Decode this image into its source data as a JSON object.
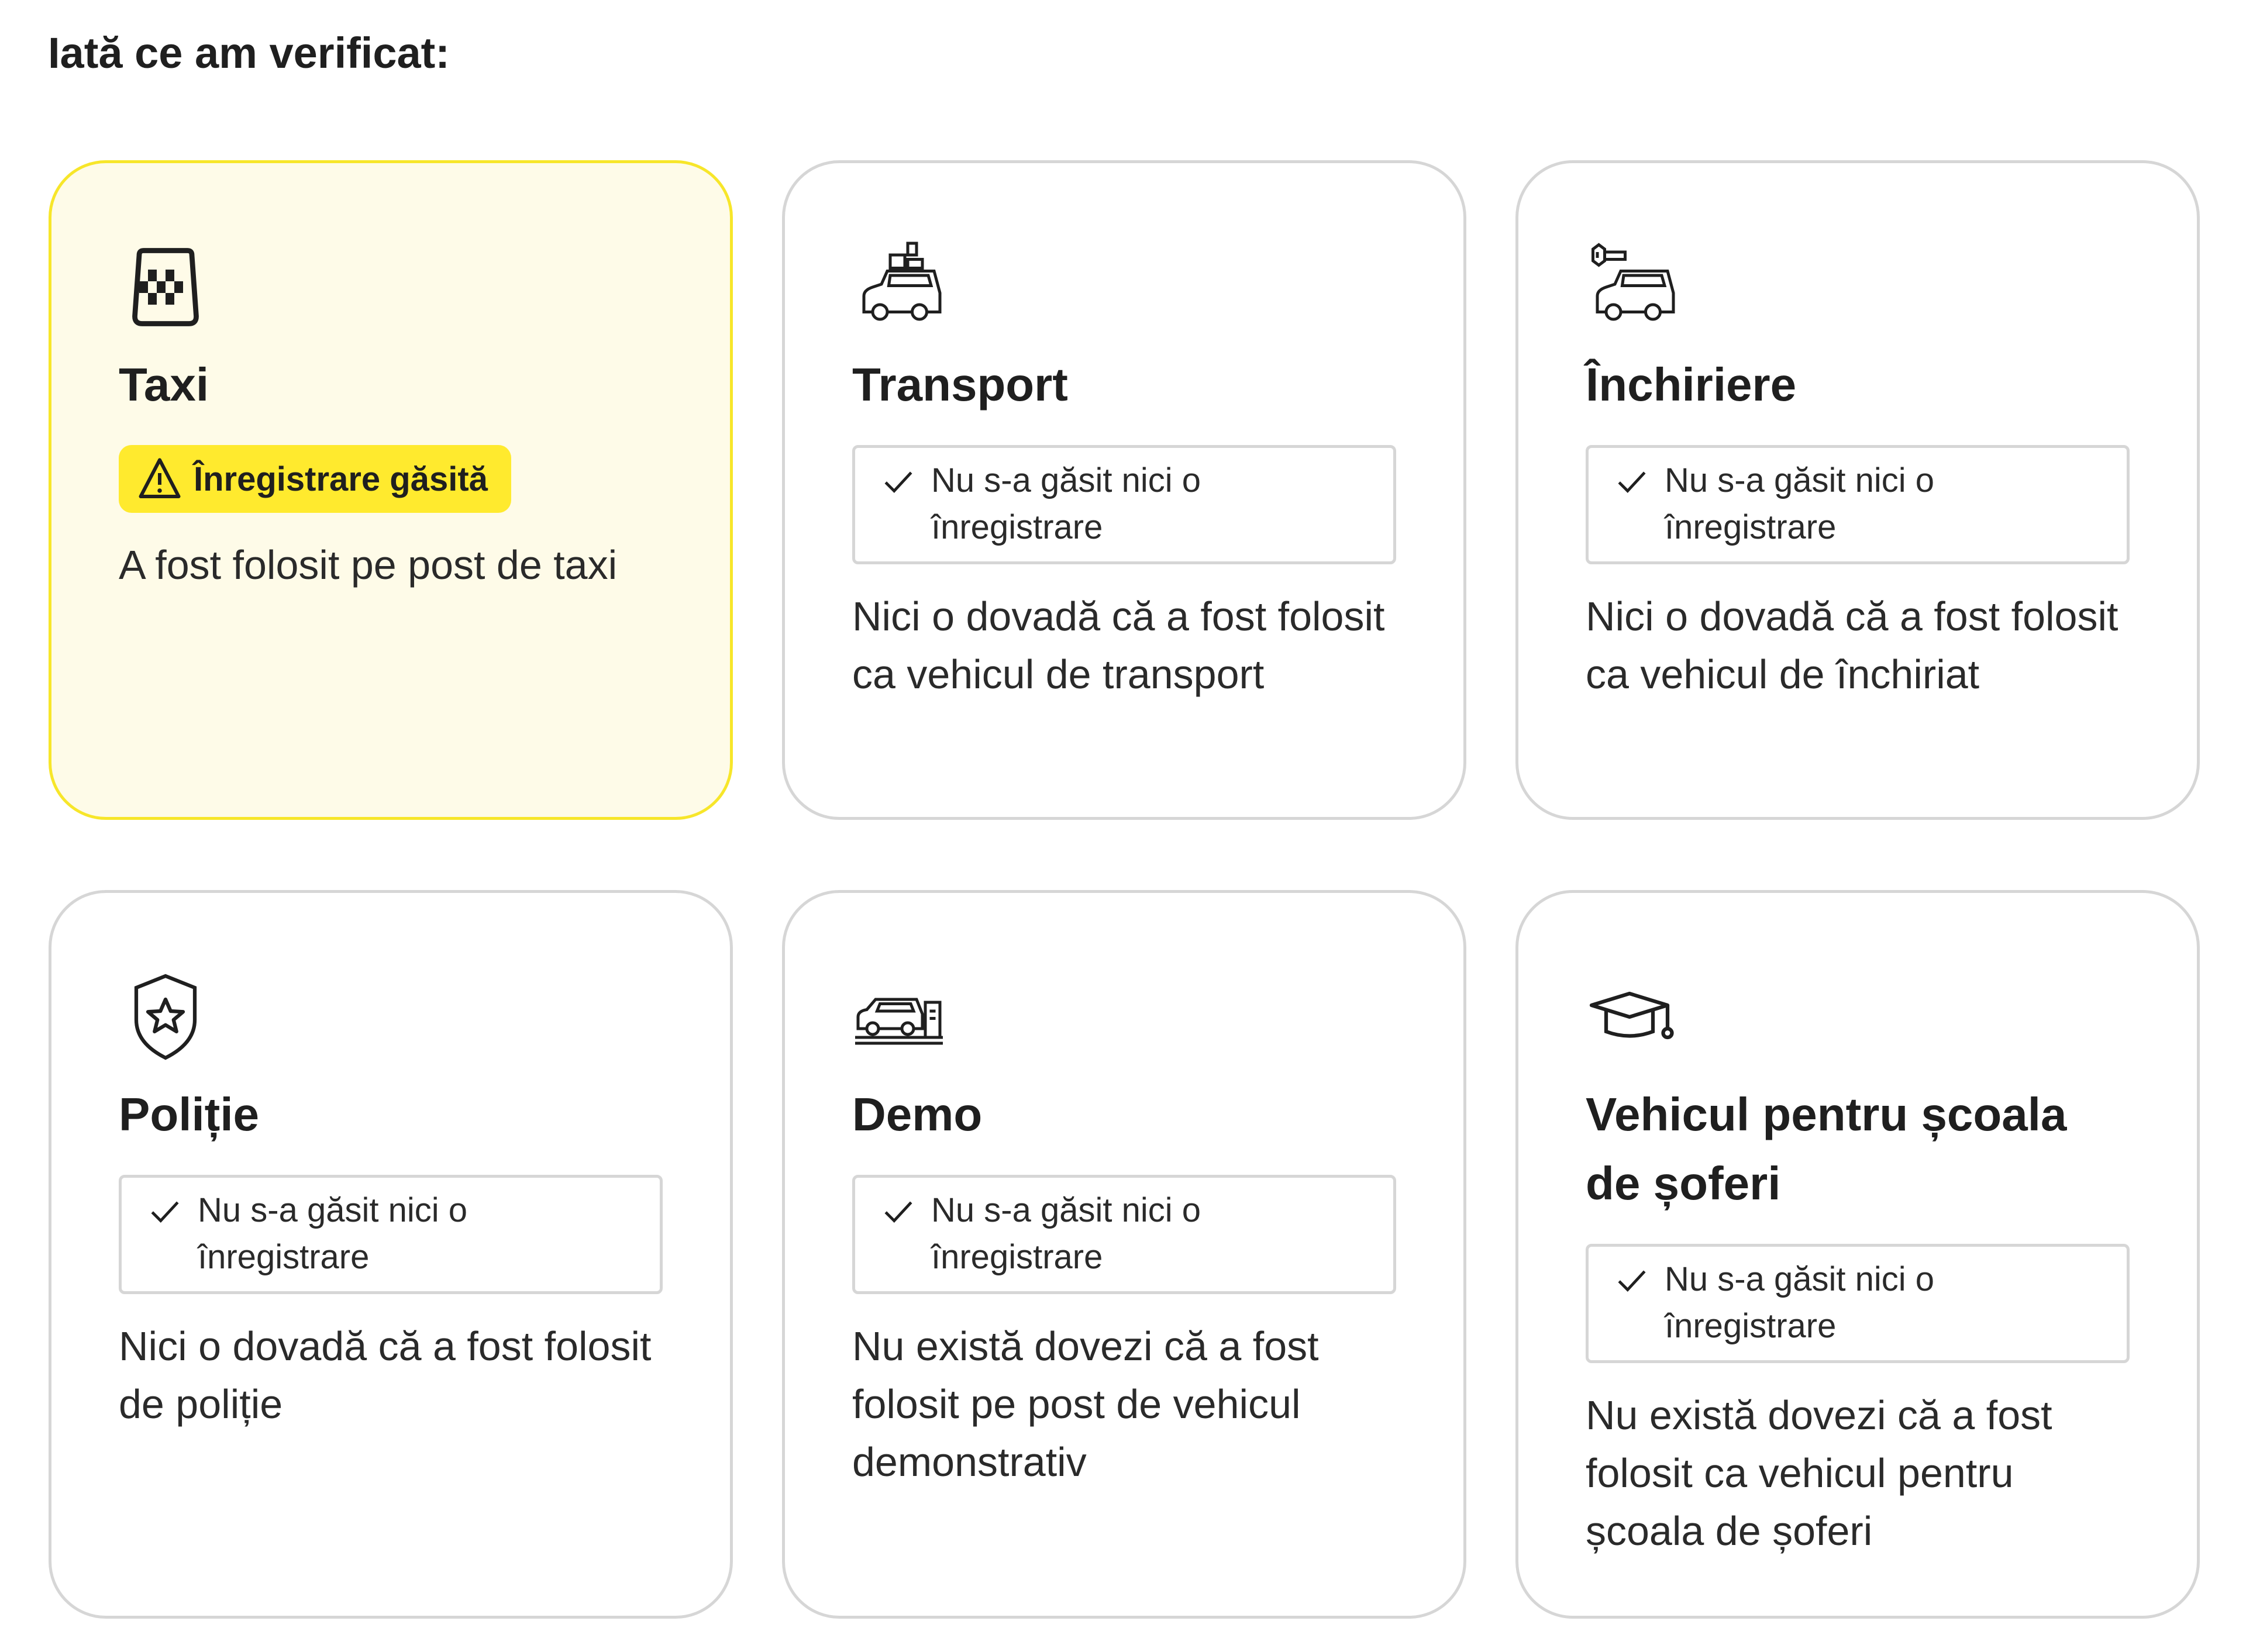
{
  "heading": "Iată ce am verificat:",
  "colors": {
    "accent_yellow": "#ffea2e",
    "found_card_bg": "#fefbe8",
    "found_card_border": "#f7e62a",
    "card_border": "#d6d6d6"
  },
  "cards": [
    {
      "icon": "taxi-sign-icon",
      "title": "Taxi",
      "status": "found",
      "status_label": "Înregistrare găsită",
      "status_icon": "warning-triangle-icon",
      "description": "A fost folosit pe post de taxi"
    },
    {
      "icon": "car-with-luggage-icon",
      "title": "Transport",
      "status": "clear",
      "status_label": "Nu s-a găsit nici o înregistrare",
      "status_icon": "check-icon",
      "description": "Nici o dovadă că a fost folosit ca vehicul de transport"
    },
    {
      "icon": "car-with-key-icon",
      "title": "Închiriere",
      "status": "clear",
      "status_label": "Nu s-a găsit nici o înregistrare",
      "status_icon": "check-icon",
      "description": "Nici o dovadă că a fost folosit ca vehicul de închiriat"
    },
    {
      "icon": "police-shield-star-icon",
      "title": "Poliție",
      "status": "clear",
      "status_label": "Nu s-a găsit nici o înregistrare",
      "status_icon": "check-icon",
      "description": "Nici o dovadă că a fost folosit de poliție"
    },
    {
      "icon": "car-showroom-icon",
      "title": "Demo",
      "status": "clear",
      "status_label": "Nu s-a găsit nici o înregistrare",
      "status_icon": "check-icon",
      "description": "Nu există dovezi că a fost folosit pe post de vehicul demonstrativ"
    },
    {
      "icon": "graduation-cap-icon",
      "title": "Vehicul pentru școala de șoferi",
      "status": "clear",
      "status_label": "Nu s-a găsit nici o înregistrare",
      "status_icon": "check-icon",
      "description": "Nu există dovezi că a fost folosit ca vehicul pentru școala de șoferi"
    }
  ]
}
